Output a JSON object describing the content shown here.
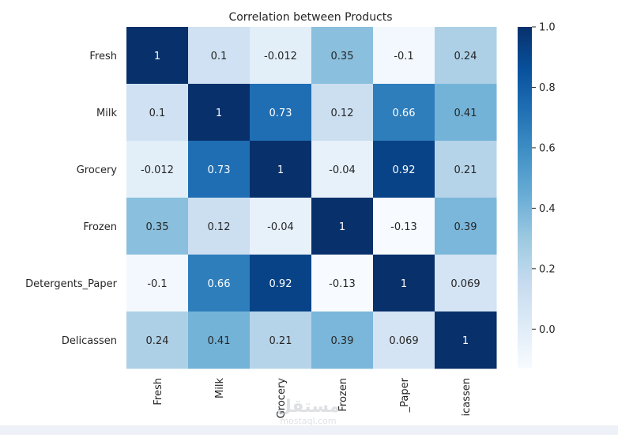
{
  "chart_data": {
    "type": "heatmap",
    "title": "Correlation between Products",
    "xlabel": "",
    "ylabel": "",
    "row_labels": [
      "Fresh",
      "Milk",
      "Grocery",
      "Frozen",
      "Detergents_Paper",
      "Delicassen"
    ],
    "col_labels": [
      "Fresh",
      "Milk",
      "Grocery",
      "Frozen",
      "_Paper",
      "icassen"
    ],
    "values": [
      [
        1,
        0.1,
        -0.012,
        0.35,
        -0.1,
        0.24
      ],
      [
        0.1,
        1,
        0.73,
        0.12,
        0.66,
        0.41
      ],
      [
        -0.012,
        0.73,
        1,
        -0.04,
        0.92,
        0.21
      ],
      [
        0.35,
        0.12,
        -0.04,
        1,
        -0.13,
        0.39
      ],
      [
        -0.1,
        0.66,
        0.92,
        -0.13,
        1,
        0.069
      ],
      [
        0.24,
        0.41,
        0.21,
        0.39,
        0.069,
        1
      ]
    ],
    "annotations": [
      [
        "1",
        "0.1",
        "-0.012",
        "0.35",
        "-0.1",
        "0.24"
      ],
      [
        "0.1",
        "1",
        "0.73",
        "0.12",
        "0.66",
        "0.41"
      ],
      [
        "-0.012",
        "0.73",
        "1",
        "-0.04",
        "0.92",
        "0.21"
      ],
      [
        "0.35",
        "0.12",
        "-0.04",
        "1",
        "-0.13",
        "0.39"
      ],
      [
        "-0.1",
        "0.66",
        "0.92",
        "-0.13",
        "1",
        "0.069"
      ],
      [
        "0.24",
        "0.41",
        "0.21",
        "0.39",
        "0.069",
        "1"
      ]
    ],
    "colormap": "Blues",
    "vmin": -0.13,
    "vmax": 1.0,
    "colorbar": {
      "ticks": [
        0.0,
        0.2,
        0.4,
        0.6,
        0.8,
        1.0
      ],
      "tick_labels": [
        "0.0",
        "0.2",
        "0.4",
        "0.6",
        "0.8",
        "1.0"
      ]
    },
    "grid": false
  },
  "watermark": {
    "text": "mostaql.com"
  }
}
